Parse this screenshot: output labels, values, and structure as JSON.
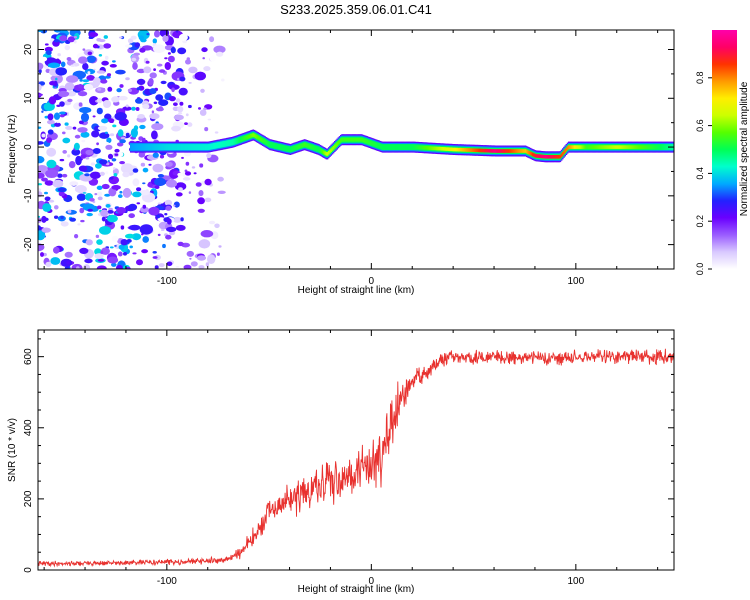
{
  "title": "S233.2025.359.06.01.C41",
  "chart_data": [
    {
      "type": "heatmap",
      "xlabel": "Height of straight line (km)",
      "ylabel": "Frequency (Hz)",
      "xlim": [
        -163,
        148
      ],
      "ylim": [
        -25,
        24
      ],
      "xticks": [
        -100,
        0,
        100
      ],
      "yticks": [
        -20,
        -10,
        0,
        10,
        20
      ],
      "noise_region_x": [
        -163,
        -72
      ],
      "signal_region_x": [
        -118,
        148
      ],
      "ridge": {
        "x": [
          -118,
          -100,
          -80,
          -68,
          -58,
          -50,
          -40,
          -33,
          -26,
          -22,
          -15,
          -5,
          5,
          20,
          40,
          60,
          75,
          80,
          85,
          92,
          96,
          105,
          120,
          148
        ],
        "frequency": [
          0,
          0,
          0,
          1,
          2.5,
          0.5,
          -0.5,
          0.5,
          -0.5,
          -1.5,
          1.5,
          1.5,
          0,
          0,
          -0.5,
          -0.8,
          -0.8,
          -1.8,
          -2,
          -2,
          0,
          0,
          0,
          0
        ],
        "amplitude": [
          0.35,
          0.4,
          0.42,
          0.45,
          0.6,
          0.5,
          0.5,
          0.55,
          0.5,
          0.65,
          0.55,
          0.55,
          0.5,
          0.5,
          0.7,
          0.95,
          0.75,
          0.9,
          0.95,
          0.85,
          0.8,
          0.55,
          0.65,
          0.45
        ]
      }
    },
    {
      "type": "line",
      "xlabel": "Height of straight line (km)",
      "ylabel": "SNR (10 * v/v)",
      "xlim": [
        -163,
        148
      ],
      "ylim": [
        0,
        675
      ],
      "xticks": [
        -100,
        0,
        100
      ],
      "yticks": [
        0,
        200,
        400,
        600
      ],
      "series": [
        {
          "name": "SNR",
          "color": "#e8312e",
          "x": [
            -163,
            -120,
            -80,
            -70,
            -62,
            -55,
            -50,
            -45,
            -40,
            -30,
            -20,
            -10,
            0,
            5,
            10,
            15,
            20,
            25,
            30,
            35,
            40,
            50,
            60,
            70,
            80,
            90,
            100,
            110,
            120,
            130,
            140,
            148
          ],
          "mean": [
            18,
            20,
            25,
            30,
            60,
            110,
            160,
            180,
            200,
            220,
            250,
            270,
            300,
            330,
            400,
            480,
            530,
            550,
            570,
            590,
            600,
            595,
            600,
            598,
            600,
            595,
            598,
            600,
            600,
            602,
            598,
            600
          ],
          "amp": [
            10,
            10,
            12,
            12,
            30,
            45,
            55,
            55,
            60,
            70,
            80,
            90,
            100,
            110,
            120,
            70,
            45,
            40,
            35,
            30,
            30,
            28,
            28,
            28,
            28,
            28,
            28,
            28,
            28,
            28,
            30,
            28
          ]
        }
      ]
    }
  ],
  "colorbar": {
    "label": "Normalized spectral amplitude",
    "range": [
      0,
      1
    ],
    "ticks": [
      "0.0",
      "0.2",
      "0.4",
      "0.6",
      "0.8"
    ],
    "tick_values": [
      0,
      0.2,
      0.4,
      0.6,
      0.8
    ],
    "colormap": "rainbow-white",
    "stops": [
      "#ffffff",
      "#d9c9ff",
      "#9a5cff",
      "#6a00ff",
      "#2222ff",
      "#00aaff",
      "#00ffcc",
      "#00ff55",
      "#55ff00",
      "#ccff00",
      "#ffee00",
      "#ff9900",
      "#ff3300",
      "#ff0066",
      "#ff00aa"
    ]
  }
}
